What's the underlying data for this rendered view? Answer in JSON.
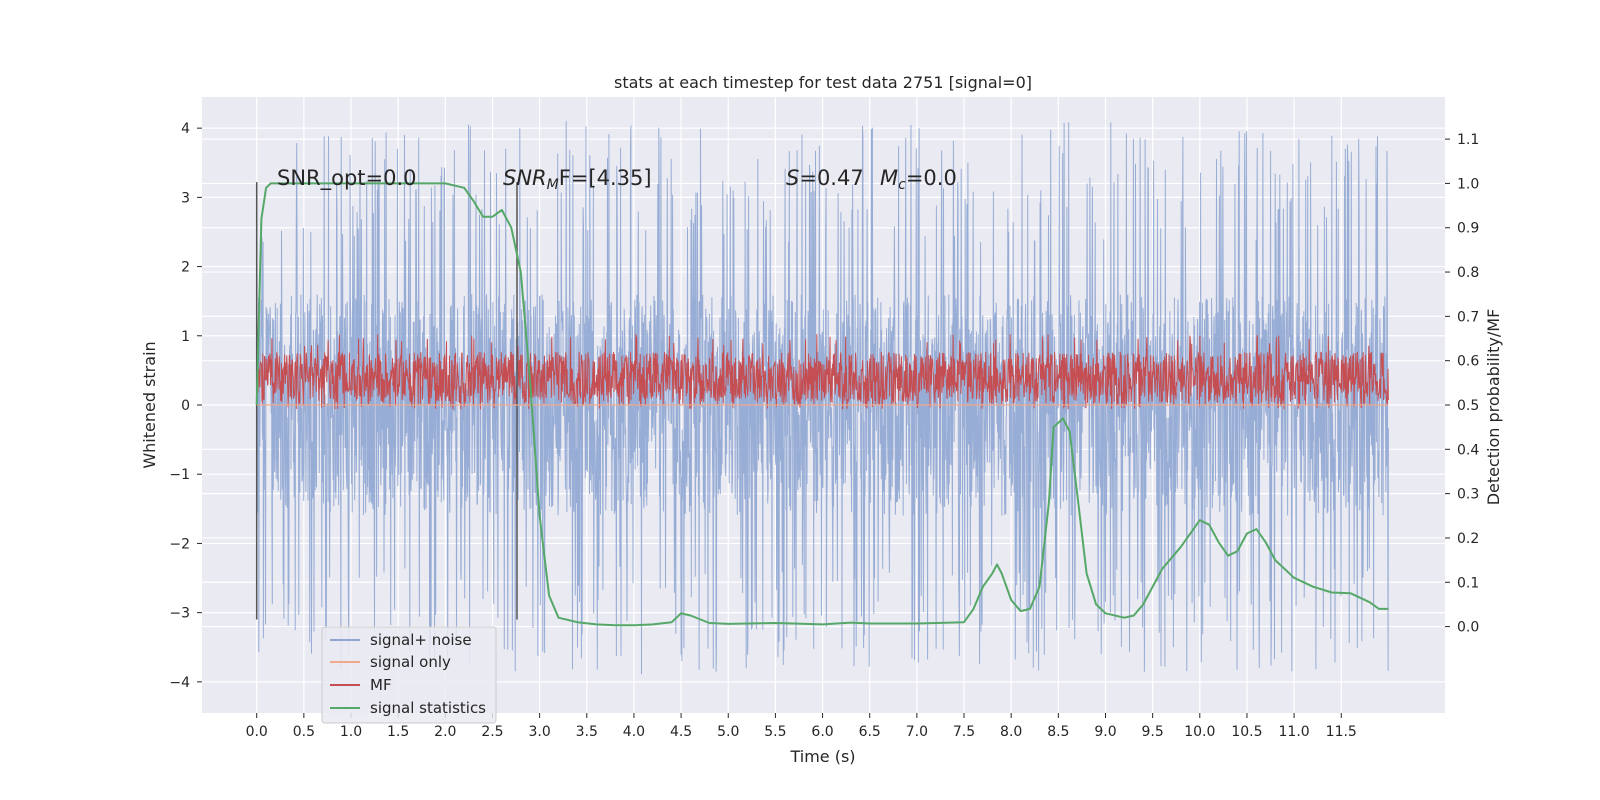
{
  "chart_data": {
    "type": "line",
    "title": "stats at each timestep for test data 2751 [signal=0]",
    "xlabel": "Time (s)",
    "ylabel": "Whitened strain",
    "y2label": "Detection probability/MF",
    "xlim": [
      -0.58,
      12.6
    ],
    "ylim": [
      -4.45,
      4.45
    ],
    "y2lim": [
      -0.195,
      1.195
    ],
    "xticks": [
      "0.0",
      "0.5",
      "1.0",
      "1.5",
      "2.0",
      "2.5",
      "3.0",
      "3.5",
      "4.0",
      "4.5",
      "5.0",
      "5.5",
      "6.0",
      "6.5",
      "7.0",
      "7.5",
      "8.0",
      "8.5",
      "9.0",
      "9.5",
      "10.0",
      "10.5",
      "11.0",
      "11.5"
    ],
    "yticks": [
      "−4",
      "−3",
      "−2",
      "−1",
      "0",
      "1",
      "2",
      "3",
      "4"
    ],
    "y2ticks": [
      "0.0",
      "0.1",
      "0.2",
      "0.3",
      "0.4",
      "0.5",
      "0.6",
      "0.7",
      "0.8",
      "0.9",
      "1.0",
      "1.1"
    ],
    "grid": true,
    "legend_position": "lower-left",
    "annotations": {
      "snr_opt": "SNR_opt=0.0",
      "snr_mf_prefix": "SNR",
      "snr_mf_sub": "M",
      "snr_mf_suffix": "F=[4.35]",
      "s_var": "S",
      "s_value": "=0.47",
      "mc_var": "M",
      "mc_sub": "c",
      "mc_value": "=0.0"
    },
    "vertical_lines_x": [
      0.0,
      2.76
    ],
    "series": [
      {
        "name": "signal+ noise",
        "color": "#8fa6d1",
        "axis": "left",
        "kind": "noise",
        "x_range": [
          0.0,
          12.0
        ],
        "band": [
          -1.6,
          1.6
        ],
        "peak_range": [
          -3.9,
          4.1
        ]
      },
      {
        "name": "signal only",
        "color": "#f0a98b",
        "axis": "left",
        "kind": "flat",
        "x_range": [
          0.0,
          12.0
        ],
        "value": 0.0
      },
      {
        "name": "MF",
        "color": "#c44e52",
        "axis": "right",
        "kind": "noise",
        "x_range": [
          0.0,
          12.0
        ],
        "band": [
          0.5,
          0.62
        ],
        "peak_range": [
          0.49,
          0.66
        ]
      },
      {
        "name": "signal statistics",
        "color": "#55a868",
        "axis": "right",
        "x": [
          0.0,
          0.05,
          0.1,
          0.15,
          0.25,
          0.5,
          1.0,
          1.5,
          2.0,
          2.2,
          2.3,
          2.4,
          2.5,
          2.6,
          2.7,
          2.8,
          2.9,
          3.0,
          3.1,
          3.2,
          3.4,
          3.6,
          3.8,
          4.0,
          4.2,
          4.4,
          4.5,
          4.6,
          4.8,
          5.0,
          5.5,
          6.0,
          6.3,
          6.5,
          7.0,
          7.5,
          7.6,
          7.7,
          7.8,
          7.85,
          7.9,
          8.0,
          8.1,
          8.2,
          8.3,
          8.4,
          8.45,
          8.55,
          8.62,
          8.7,
          8.8,
          8.9,
          9.0,
          9.2,
          9.3,
          9.4,
          9.6,
          9.8,
          10.0,
          10.1,
          10.2,
          10.3,
          10.4,
          10.5,
          10.6,
          10.7,
          10.8,
          11.0,
          11.2,
          11.4,
          11.6,
          11.8,
          11.9,
          12.0
        ],
        "values": [
          0.5,
          0.92,
          0.99,
          1.0,
          1.0,
          1.0,
          1.0,
          1.0,
          1.0,
          0.99,
          0.96,
          0.925,
          0.925,
          0.94,
          0.9,
          0.8,
          0.55,
          0.25,
          0.07,
          0.02,
          0.01,
          0.005,
          0.003,
          0.003,
          0.005,
          0.01,
          0.03,
          0.025,
          0.008,
          0.006,
          0.008,
          0.005,
          0.009,
          0.007,
          0.007,
          0.01,
          0.04,
          0.09,
          0.12,
          0.14,
          0.12,
          0.06,
          0.035,
          0.04,
          0.09,
          0.28,
          0.45,
          0.47,
          0.44,
          0.3,
          0.12,
          0.05,
          0.03,
          0.02,
          0.025,
          0.05,
          0.13,
          0.18,
          0.24,
          0.23,
          0.19,
          0.16,
          0.17,
          0.21,
          0.22,
          0.19,
          0.15,
          0.11,
          0.09,
          0.077,
          0.075,
          0.055,
          0.04,
          0.04
        ]
      }
    ]
  }
}
